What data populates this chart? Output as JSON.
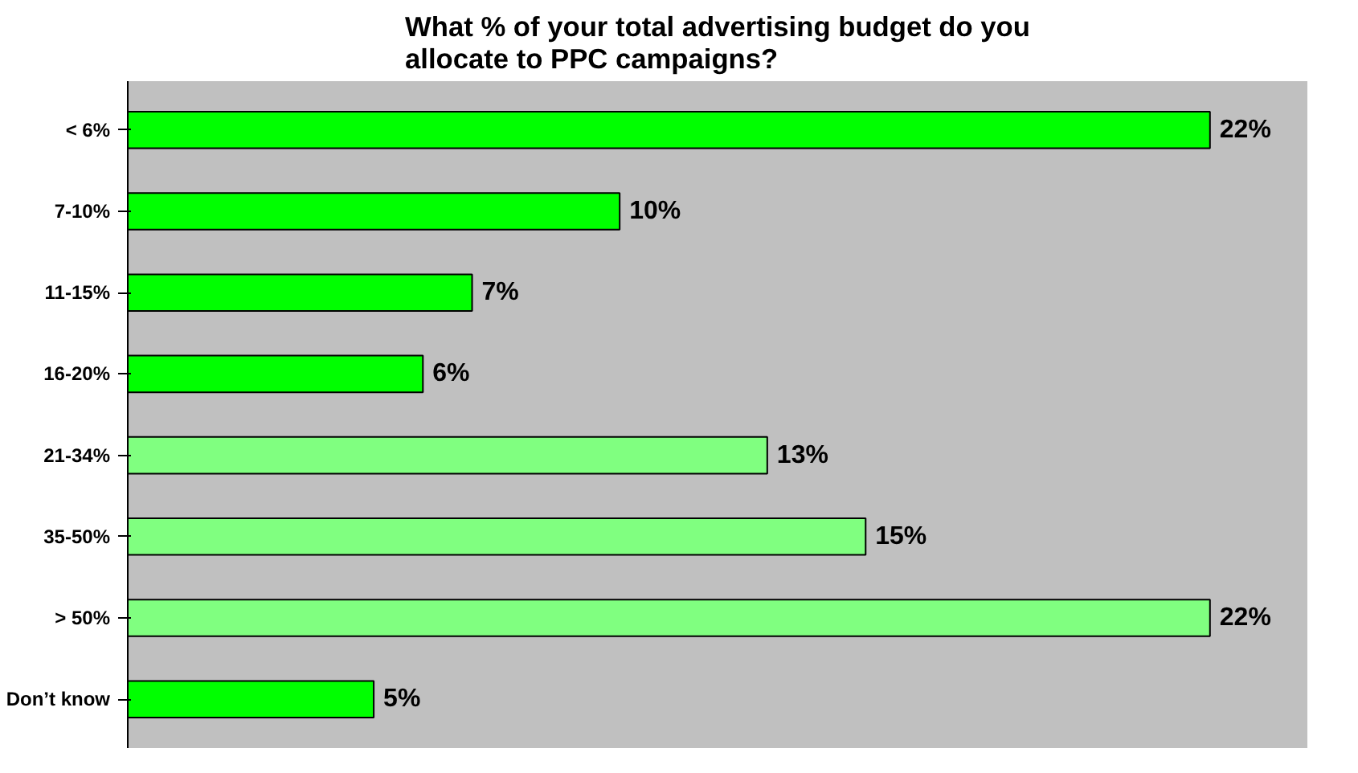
{
  "chart_data": {
    "type": "bar",
    "orientation": "horizontal",
    "title": "What % of your total advertising budget do you\nallocate to PPC campaigns?",
    "categories": [
      "< 6%",
      "7-10%",
      "11-15%",
      "16-20%",
      "21-34%",
      "35-50%",
      "> 50%",
      "Don’t know"
    ],
    "values": [
      22,
      10,
      7,
      6,
      13,
      15,
      22,
      5
    ],
    "value_labels": [
      "22%",
      "10%",
      "7%",
      "6%",
      "13%",
      "15%",
      "22%",
      "5%"
    ],
    "colors": [
      "#00ff00",
      "#00ff00",
      "#00ff00",
      "#00ff00",
      "#80ff80",
      "#80ff80",
      "#80ff80",
      "#00ff00"
    ],
    "tick_labels": "y"
  }
}
